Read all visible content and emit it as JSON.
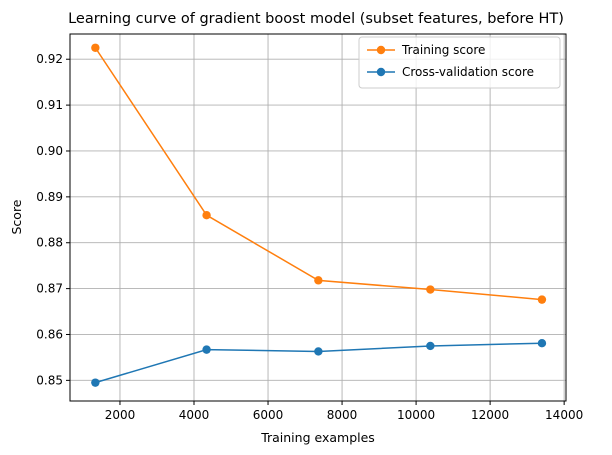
{
  "chart_data": {
    "type": "line",
    "title": "Learning curve of gradient boost model (subset features, before HT)",
    "xlabel": "Training examples",
    "ylabel": "Score",
    "xlim": [
      650,
      14050
    ],
    "ylim": [
      0.8455,
      0.9255
    ],
    "xticks": [
      2000,
      4000,
      6000,
      8000,
      10000,
      12000,
      14000
    ],
    "yticks": [
      0.85,
      0.86,
      0.87,
      0.88,
      0.89,
      0.9,
      0.91,
      0.92
    ],
    "ytick_labels": [
      "0.85",
      "0.86",
      "0.87",
      "0.88",
      "0.89",
      "0.90",
      "0.91",
      "0.92"
    ],
    "grid": true,
    "legend_position": "top-right",
    "x": [
      1335,
      4340,
      7360,
      10385,
      13400
    ],
    "series": [
      {
        "name": "Training score",
        "color": "#ff7f0e",
        "values": [
          0.9225,
          0.886,
          0.8718,
          0.8698,
          0.8676
        ]
      },
      {
        "name": "Cross-validation score",
        "color": "#1f77b4",
        "values": [
          0.8495,
          0.8567,
          0.8563,
          0.8575,
          0.8581
        ]
      }
    ]
  }
}
